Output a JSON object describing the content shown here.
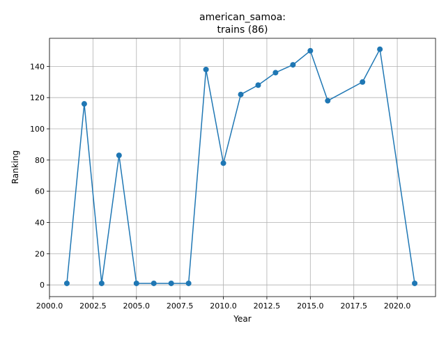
{
  "chart_data": {
    "type": "line",
    "title_line1": "american_samoa:",
    "title_line2": "trains (86)",
    "xlabel": "Year",
    "ylabel": "Ranking",
    "xlim": [
      2000.0,
      2022.2
    ],
    "ylim": [
      -7.5,
      158
    ],
    "x_ticks": [
      2000.0,
      2002.5,
      2005.0,
      2007.5,
      2010.0,
      2012.5,
      2015.0,
      2017.5,
      2020.0
    ],
    "x_tick_labels": [
      "2000.0",
      "2002.5",
      "2005.0",
      "2007.5",
      "2010.0",
      "2012.5",
      "2015.0",
      "2017.5",
      "2020.0"
    ],
    "y_ticks": [
      0,
      20,
      40,
      60,
      80,
      100,
      120,
      140
    ],
    "y_tick_labels": [
      "0",
      "20",
      "40",
      "60",
      "80",
      "100",
      "120",
      "140"
    ],
    "grid": true,
    "series": [
      {
        "color": "#1f77b4",
        "marker": "circle",
        "x": [
          2001,
          2002,
          2003,
          2004,
          2005,
          2006,
          2007,
          2008,
          2009,
          2010,
          2011,
          2012,
          2013,
          2014,
          2015,
          2016,
          2018,
          2019,
          2021
        ],
        "y": [
          1,
          116,
          1,
          83,
          1,
          1,
          1,
          1,
          138,
          78,
          122,
          128,
          136,
          141,
          150,
          118,
          130,
          151,
          1
        ]
      }
    ]
  }
}
